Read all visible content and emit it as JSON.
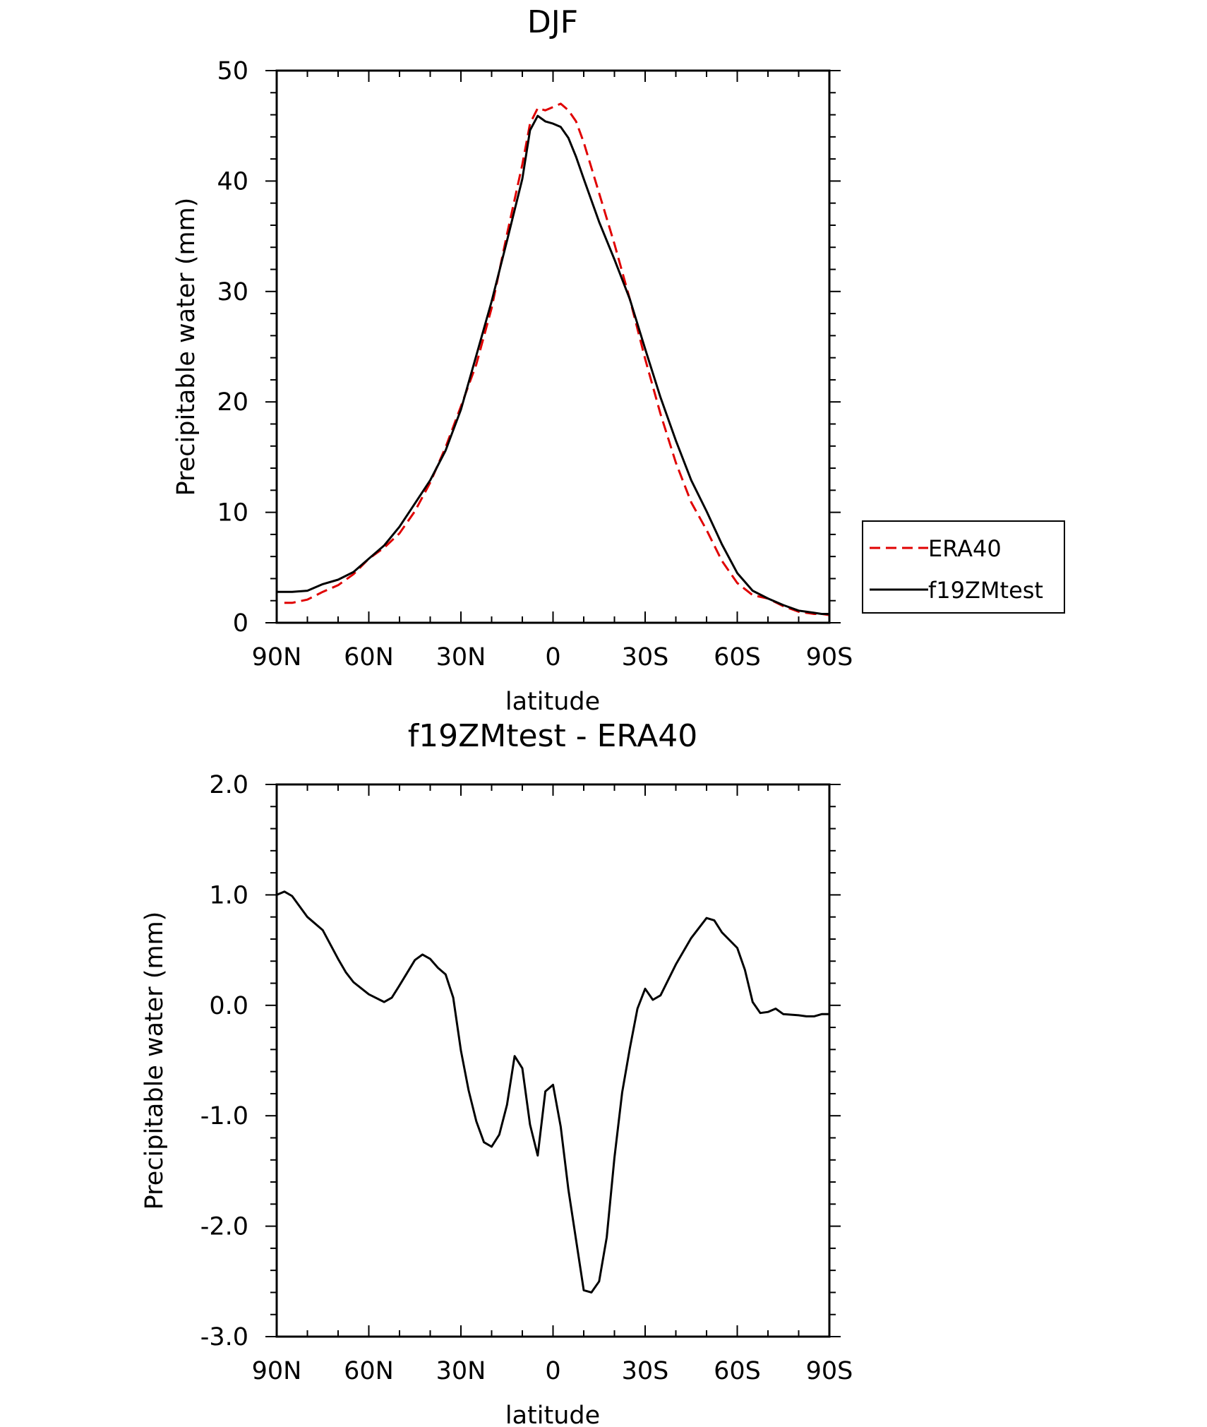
{
  "colors": {
    "era40": "#e00000",
    "model": "#000000"
  },
  "chart_data": [
    {
      "type": "line",
      "title": "DJF",
      "xlabel": "latitude",
      "ylabel": "Precipitable water (mm)",
      "xlim": [
        90,
        -90
      ],
      "ylim": [
        0,
        50
      ],
      "x_ticks": [
        90,
        60,
        30,
        0,
        -30,
        -60,
        -90
      ],
      "x_tick_labels": [
        "90N",
        "60N",
        "30N",
        "0",
        "30S",
        "60S",
        "90S"
      ],
      "y_ticks": [
        0,
        10,
        20,
        30,
        40,
        50
      ],
      "y_tick_labels": [
        "0",
        "10",
        "20",
        "30",
        "40",
        "50"
      ],
      "legend": {
        "placement": "outside-right",
        "entries": [
          "ERA40",
          "f19ZMtest"
        ]
      },
      "series": [
        {
          "name": "ERA40",
          "style": "dashed",
          "color": "red",
          "x": [
            87.5,
            85,
            80,
            75,
            70,
            65,
            60,
            55,
            50,
            45,
            40,
            35,
            30,
            25,
            20,
            15,
            10,
            7.5,
            5,
            2.5,
            0,
            -2.5,
            -5,
            -7.5,
            -10,
            -15,
            -20,
            -25,
            -30,
            -35,
            -40,
            -45,
            -50,
            -55,
            -60,
            -65,
            -70,
            -75,
            -80,
            -85,
            -87.5,
            -90
          ],
          "y": [
            1.8,
            1.8,
            2.1,
            2.8,
            3.4,
            4.4,
            5.8,
            6.8,
            8.1,
            10.1,
            12.7,
            15.9,
            19.6,
            23.4,
            28.5,
            35.2,
            41.5,
            45.2,
            46.6,
            46.4,
            46.7,
            47,
            46.4,
            45.4,
            43.5,
            38.9,
            34.3,
            29.3,
            23.9,
            18.9,
            14.5,
            10.9,
            8.4,
            5.6,
            3.6,
            2.5,
            2.2,
            1.5,
            1,
            0.8,
            0.8,
            0.7
          ]
        },
        {
          "name": "f19ZMtest",
          "style": "solid",
          "color": "black",
          "x": [
            90,
            87.5,
            85,
            80,
            75,
            70,
            65,
            60,
            55,
            50,
            45,
            40,
            35,
            30,
            25,
            20,
            15,
            10,
            7.5,
            5,
            2.5,
            0,
            -2.5,
            -5,
            -7.5,
            -10,
            -15,
            -20,
            -25,
            -30,
            -35,
            -40,
            -45,
            -50,
            -55,
            -60,
            -65,
            -70,
            -75,
            -80,
            -85,
            -87.5,
            -90
          ],
          "y": [
            2.8,
            2.8,
            2.8,
            2.9,
            3.5,
            3.9,
            4.6,
            5.8,
            7,
            8.7,
            10.8,
            12.9,
            15.6,
            19.3,
            24.2,
            29.1,
            34.6,
            40.2,
            44.6,
            45.9,
            45.4,
            45.2,
            44.9,
            43.9,
            42.2,
            40.2,
            36.3,
            32.9,
            29.3,
            24.8,
            20.4,
            16.5,
            12.9,
            10.1,
            7.1,
            4.5,
            2.9,
            2.2,
            1.6,
            1.1,
            0.9,
            0.8,
            0.8
          ]
        }
      ]
    },
    {
      "type": "line",
      "title": "f19ZMtest - ERA40",
      "xlabel": "latitude",
      "ylabel": "Precipitable water (mm)",
      "xlim": [
        90,
        -90
      ],
      "ylim": [
        -3,
        2
      ],
      "x_ticks": [
        90,
        60,
        30,
        0,
        -30,
        -60,
        -90
      ],
      "x_tick_labels": [
        "90N",
        "60N",
        "30N",
        "0",
        "30S",
        "60S",
        "90S"
      ],
      "y_ticks": [
        2,
        1,
        0,
        -1,
        -2,
        -3
      ],
      "y_tick_labels": [
        "2.0",
        "1.0",
        "0.0",
        "-1.0",
        "-2.0",
        "-3.0"
      ],
      "series": [
        {
          "style": "solid",
          "color": "black",
          "x": [
            90,
            87.5,
            85,
            80,
            75,
            70,
            67.5,
            65,
            60,
            55,
            52.5,
            50,
            45,
            42.5,
            40,
            37.5,
            35,
            32.5,
            30,
            27.5,
            25,
            22.5,
            20,
            17.5,
            15,
            12.5,
            10,
            7.5,
            5,
            2.5,
            0,
            -2.5,
            -5,
            -10,
            -12.5,
            -15,
            -17.5,
            -20,
            -22.5,
            -25,
            -27.5,
            -30,
            -32.5,
            -35,
            -40,
            -45,
            -50,
            -52.5,
            -55,
            -60,
            -62.5,
            -65,
            -67.5,
            -70,
            -72.5,
            -75,
            -80,
            -82.5,
            -85,
            -87.5,
            -90
          ],
          "y": [
            1,
            1.03,
            0.99,
            0.8,
            0.68,
            0.42,
            0.3,
            0.21,
            0.1,
            0.03,
            0.07,
            0.18,
            0.41,
            0.46,
            0.42,
            0.34,
            0.28,
            0.07,
            -0.41,
            -0.77,
            -1.05,
            -1.24,
            -1.28,
            -1.17,
            -0.9,
            -0.46,
            -0.57,
            -1.08,
            -1.36,
            -0.78,
            -0.72,
            -1.1,
            -1.67,
            -2.58,
            -2.6,
            -2.5,
            -2.1,
            -1.38,
            -0.79,
            -0.39,
            -0.03,
            0.15,
            0.05,
            0.09,
            0.37,
            0.61,
            0.79,
            0.77,
            0.66,
            0.52,
            0.32,
            0.03,
            -0.07,
            -0.06,
            -0.03,
            -0.08,
            -0.09,
            -0.1,
            -0.1,
            -0.08,
            -0.08
          ]
        }
      ]
    }
  ]
}
